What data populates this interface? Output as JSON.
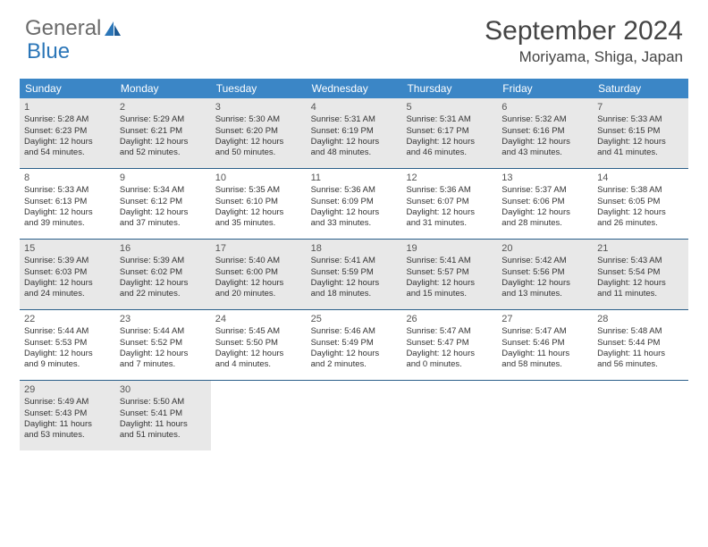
{
  "brand": {
    "part1": "General",
    "part2": "Blue"
  },
  "title": "September 2024",
  "location": "Moriyama, Shiga, Japan",
  "colors": {
    "header_bg": "#3b86c6",
    "header_text": "#ffffff",
    "rule": "#2b5f8a",
    "shade": "#e8e8e8",
    "text": "#333333",
    "brand_gray": "#6b6b6b",
    "brand_blue": "#2b76b8"
  },
  "dow": [
    "Sunday",
    "Monday",
    "Tuesday",
    "Wednesday",
    "Thursday",
    "Friday",
    "Saturday"
  ],
  "weeks": [
    {
      "shaded": true,
      "days": [
        {
          "n": "1",
          "sr": "Sunrise: 5:28 AM",
          "ss": "Sunset: 6:23 PM",
          "d1": "Daylight: 12 hours",
          "d2": "and 54 minutes."
        },
        {
          "n": "2",
          "sr": "Sunrise: 5:29 AM",
          "ss": "Sunset: 6:21 PM",
          "d1": "Daylight: 12 hours",
          "d2": "and 52 minutes."
        },
        {
          "n": "3",
          "sr": "Sunrise: 5:30 AM",
          "ss": "Sunset: 6:20 PM",
          "d1": "Daylight: 12 hours",
          "d2": "and 50 minutes."
        },
        {
          "n": "4",
          "sr": "Sunrise: 5:31 AM",
          "ss": "Sunset: 6:19 PM",
          "d1": "Daylight: 12 hours",
          "d2": "and 48 minutes."
        },
        {
          "n": "5",
          "sr": "Sunrise: 5:31 AM",
          "ss": "Sunset: 6:17 PM",
          "d1": "Daylight: 12 hours",
          "d2": "and 46 minutes."
        },
        {
          "n": "6",
          "sr": "Sunrise: 5:32 AM",
          "ss": "Sunset: 6:16 PM",
          "d1": "Daylight: 12 hours",
          "d2": "and 43 minutes."
        },
        {
          "n": "7",
          "sr": "Sunrise: 5:33 AM",
          "ss": "Sunset: 6:15 PM",
          "d1": "Daylight: 12 hours",
          "d2": "and 41 minutes."
        }
      ]
    },
    {
      "shaded": false,
      "days": [
        {
          "n": "8",
          "sr": "Sunrise: 5:33 AM",
          "ss": "Sunset: 6:13 PM",
          "d1": "Daylight: 12 hours",
          "d2": "and 39 minutes."
        },
        {
          "n": "9",
          "sr": "Sunrise: 5:34 AM",
          "ss": "Sunset: 6:12 PM",
          "d1": "Daylight: 12 hours",
          "d2": "and 37 minutes."
        },
        {
          "n": "10",
          "sr": "Sunrise: 5:35 AM",
          "ss": "Sunset: 6:10 PM",
          "d1": "Daylight: 12 hours",
          "d2": "and 35 minutes."
        },
        {
          "n": "11",
          "sr": "Sunrise: 5:36 AM",
          "ss": "Sunset: 6:09 PM",
          "d1": "Daylight: 12 hours",
          "d2": "and 33 minutes."
        },
        {
          "n": "12",
          "sr": "Sunrise: 5:36 AM",
          "ss": "Sunset: 6:07 PM",
          "d1": "Daylight: 12 hours",
          "d2": "and 31 minutes."
        },
        {
          "n": "13",
          "sr": "Sunrise: 5:37 AM",
          "ss": "Sunset: 6:06 PM",
          "d1": "Daylight: 12 hours",
          "d2": "and 28 minutes."
        },
        {
          "n": "14",
          "sr": "Sunrise: 5:38 AM",
          "ss": "Sunset: 6:05 PM",
          "d1": "Daylight: 12 hours",
          "d2": "and 26 minutes."
        }
      ]
    },
    {
      "shaded": true,
      "days": [
        {
          "n": "15",
          "sr": "Sunrise: 5:39 AM",
          "ss": "Sunset: 6:03 PM",
          "d1": "Daylight: 12 hours",
          "d2": "and 24 minutes."
        },
        {
          "n": "16",
          "sr": "Sunrise: 5:39 AM",
          "ss": "Sunset: 6:02 PM",
          "d1": "Daylight: 12 hours",
          "d2": "and 22 minutes."
        },
        {
          "n": "17",
          "sr": "Sunrise: 5:40 AM",
          "ss": "Sunset: 6:00 PM",
          "d1": "Daylight: 12 hours",
          "d2": "and 20 minutes."
        },
        {
          "n": "18",
          "sr": "Sunrise: 5:41 AM",
          "ss": "Sunset: 5:59 PM",
          "d1": "Daylight: 12 hours",
          "d2": "and 18 minutes."
        },
        {
          "n": "19",
          "sr": "Sunrise: 5:41 AM",
          "ss": "Sunset: 5:57 PM",
          "d1": "Daylight: 12 hours",
          "d2": "and 15 minutes."
        },
        {
          "n": "20",
          "sr": "Sunrise: 5:42 AM",
          "ss": "Sunset: 5:56 PM",
          "d1": "Daylight: 12 hours",
          "d2": "and 13 minutes."
        },
        {
          "n": "21",
          "sr": "Sunrise: 5:43 AM",
          "ss": "Sunset: 5:54 PM",
          "d1": "Daylight: 12 hours",
          "d2": "and 11 minutes."
        }
      ]
    },
    {
      "shaded": false,
      "days": [
        {
          "n": "22",
          "sr": "Sunrise: 5:44 AM",
          "ss": "Sunset: 5:53 PM",
          "d1": "Daylight: 12 hours",
          "d2": "and 9 minutes."
        },
        {
          "n": "23",
          "sr": "Sunrise: 5:44 AM",
          "ss": "Sunset: 5:52 PM",
          "d1": "Daylight: 12 hours",
          "d2": "and 7 minutes."
        },
        {
          "n": "24",
          "sr": "Sunrise: 5:45 AM",
          "ss": "Sunset: 5:50 PM",
          "d1": "Daylight: 12 hours",
          "d2": "and 4 minutes."
        },
        {
          "n": "25",
          "sr": "Sunrise: 5:46 AM",
          "ss": "Sunset: 5:49 PM",
          "d1": "Daylight: 12 hours",
          "d2": "and 2 minutes."
        },
        {
          "n": "26",
          "sr": "Sunrise: 5:47 AM",
          "ss": "Sunset: 5:47 PM",
          "d1": "Daylight: 12 hours",
          "d2": "and 0 minutes."
        },
        {
          "n": "27",
          "sr": "Sunrise: 5:47 AM",
          "ss": "Sunset: 5:46 PM",
          "d1": "Daylight: 11 hours",
          "d2": "and 58 minutes."
        },
        {
          "n": "28",
          "sr": "Sunrise: 5:48 AM",
          "ss": "Sunset: 5:44 PM",
          "d1": "Daylight: 11 hours",
          "d2": "and 56 minutes."
        }
      ]
    },
    {
      "shaded": true,
      "days": [
        {
          "n": "29",
          "sr": "Sunrise: 5:49 AM",
          "ss": "Sunset: 5:43 PM",
          "d1": "Daylight: 11 hours",
          "d2": "and 53 minutes."
        },
        {
          "n": "30",
          "sr": "Sunrise: 5:50 AM",
          "ss": "Sunset: 5:41 PM",
          "d1": "Daylight: 11 hours",
          "d2": "and 51 minutes."
        },
        null,
        null,
        null,
        null,
        null
      ]
    }
  ]
}
